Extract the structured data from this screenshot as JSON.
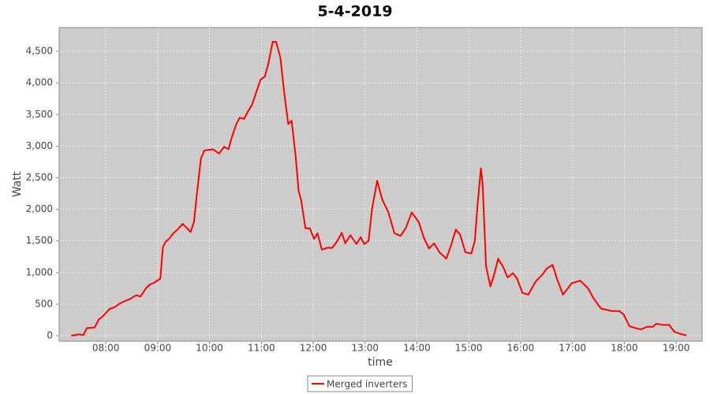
{
  "chart_data": {
    "type": "line",
    "title": "5-4-2019",
    "x_label": "time",
    "y_label": "Watt",
    "x": [
      "07:20",
      "07:29",
      "07:34",
      "07:38",
      "07:47",
      "07:52",
      "07:56",
      "08:04",
      "08:10",
      "08:15",
      "08:24",
      "08:28",
      "08:35",
      "08:40",
      "08:47",
      "08:51",
      "08:56",
      "09:03",
      "09:06",
      "09:09",
      "09:13",
      "09:18",
      "09:23",
      "09:29",
      "09:34",
      "09:38",
      "09:42",
      "09:45",
      "09:50",
      "09:54",
      "10:04",
      "10:11",
      "10:17",
      "10:22",
      "10:26",
      "10:31",
      "10:35",
      "10:40",
      "10:45",
      "10:49",
      "10:54",
      "10:59",
      "11:04",
      "11:08",
      "11:13",
      "11:17",
      "11:22",
      "11:26",
      "11:31",
      "11:35",
      "11:40",
      "11:43",
      "11:46",
      "11:51",
      "11:56",
      "12:01",
      "12:05",
      "12:10",
      "12:16",
      "12:22",
      "12:28",
      "12:33",
      "12:37",
      "12:43",
      "12:50",
      "12:55",
      "12:59",
      "13:04",
      "13:08",
      "13:14",
      "13:20",
      "13:27",
      "13:34",
      "13:41",
      "13:47",
      "13:54",
      "14:02",
      "14:08",
      "14:14",
      "14:20",
      "14:26",
      "14:34",
      "14:40",
      "14:45",
      "14:50",
      "14:56",
      "15:03",
      "15:07",
      "15:10",
      "15:14",
      "15:16",
      "15:20",
      "15:25",
      "15:29",
      "15:34",
      "15:40",
      "15:45",
      "15:51",
      "15:56",
      "16:02",
      "16:09",
      "16:17",
      "16:26",
      "16:30",
      "16:37",
      "16:42",
      "16:49",
      "16:53",
      "16:59",
      "17:09",
      "17:18",
      "17:24",
      "17:33",
      "17:45",
      "17:54",
      "17:59",
      "18:06",
      "18:13",
      "18:19",
      "18:26",
      "18:33",
      "18:37",
      "18:45",
      "18:52",
      "18:58",
      "19:07",
      "19:12"
    ],
    "series": [
      {
        "name": "Merged inverters",
        "color": "#ff0000",
        "values": [
          0,
          20,
          10,
          120,
          130,
          260,
          300,
          420,
          450,
          500,
          560,
          580,
          640,
          620,
          760,
          810,
          840,
          900,
          1400,
          1480,
          1530,
          1620,
          1680,
          1770,
          1700,
          1640,
          1800,
          2200,
          2800,
          2930,
          2950,
          2880,
          2990,
          2950,
          3150,
          3350,
          3450,
          3430,
          3560,
          3650,
          3850,
          4050,
          4100,
          4300,
          4650,
          4650,
          4400,
          3900,
          3350,
          3400,
          2800,
          2300,
          2150,
          1700,
          1700,
          1530,
          1620,
          1360,
          1390,
          1390,
          1500,
          1630,
          1460,
          1590,
          1450,
          1560,
          1450,
          1500,
          2000,
          2450,
          2150,
          1950,
          1620,
          1580,
          1700,
          1950,
          1800,
          1550,
          1380,
          1460,
          1320,
          1220,
          1450,
          1680,
          1600,
          1320,
          1300,
          1500,
          2050,
          2650,
          2400,
          1100,
          780,
          950,
          1220,
          1080,
          920,
          990,
          900,
          680,
          650,
          850,
          980,
          1060,
          1120,
          900,
          650,
          720,
          830,
          870,
          750,
          600,
          430,
          390,
          390,
          340,
          150,
          120,
          100,
          140,
          140,
          190,
          170,
          170,
          60,
          20,
          5
        ]
      }
    ],
    "xlim": [
      "07:06",
      "19:30"
    ],
    "xticks": [
      "08:00",
      "09:00",
      "10:00",
      "11:00",
      "12:00",
      "13:00",
      "14:00",
      "15:00",
      "16:00",
      "17:00",
      "18:00",
      "19:00"
    ],
    "ylim": [
      -87,
      4875
    ],
    "yticks": [
      0,
      500,
      {
        "value": 1000,
        "label": "1,000"
      },
      {
        "value": 1500,
        "label": "1,500"
      },
      {
        "value": 2000,
        "label": "2,000"
      },
      {
        "value": 2500,
        "label": "2,500"
      },
      {
        "value": 3000,
        "label": "3,000"
      },
      {
        "value": 3500,
        "label": "3,500"
      },
      {
        "value": 4000,
        "label": "4,000"
      },
      {
        "value": 4500,
        "label": "4,500"
      }
    ],
    "grid": true,
    "legend": "bottom",
    "background": "#cccccc"
  }
}
